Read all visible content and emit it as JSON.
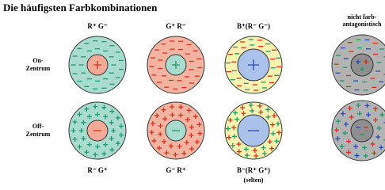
{
  "title": "Die häufigsten Farbkombinationen",
  "column_headers": [
    "R⁺ G⁻",
    "G⁺ R⁻",
    "B⁺(R⁻ G⁻)"
  ],
  "nonopponent_header": [
    "nicht farb-",
    "antagonistisch"
  ],
  "row_labels": [
    [
      "On-",
      "Zentrum"
    ],
    [
      "Off-",
      "Zentrum"
    ]
  ],
  "bottom_labels": [
    "R⁻ G⁺",
    "G⁻ R⁺",
    "B⁻(R⁺ G⁺)"
  ],
  "bottom_note": "(selten)"
}
